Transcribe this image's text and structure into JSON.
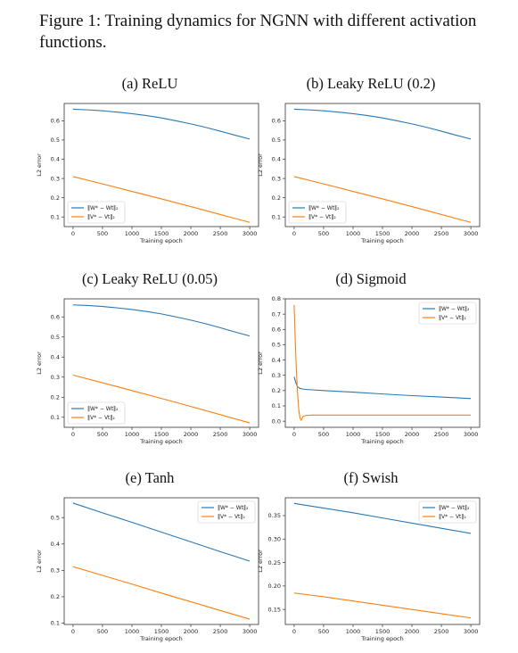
{
  "figure": {
    "caption": "Figure 1: Training dynamics for NGNN with different activation functions.",
    "colors": {
      "W_series": "#2878b5",
      "V_series": "#ff7f0e",
      "frame": "#333333"
    }
  },
  "chart_data": [
    {
      "id": "relu",
      "type": "line",
      "title": "(a) ReLU",
      "xlabel": "Training epoch",
      "ylabel": "L2 error",
      "xlim": [
        -150,
        3150
      ],
      "ylim": [
        0.05,
        0.69
      ],
      "xticks": [
        0,
        500,
        1000,
        1500,
        2000,
        2500,
        3000
      ],
      "xtick_labels": [
        "0",
        "500",
        "1000",
        "1500",
        "2000",
        "2500",
        "3000"
      ],
      "yticks": [
        0.1,
        0.2,
        0.3,
        0.4,
        0.5,
        0.6
      ],
      "ytick_labels": [
        "0.1",
        "0.2",
        "0.3",
        "0.4",
        "0.5",
        "0.6"
      ],
      "legend": "bottom-left",
      "grid": false,
      "series": [
        {
          "name": "‖W* − Wt‖₂",
          "color": "#2878b5",
          "x": [
            0,
            250,
            500,
            750,
            1000,
            1250,
            1500,
            1750,
            2000,
            2250,
            2500,
            2750,
            3000
          ],
          "y": [
            0.66,
            0.657,
            0.652,
            0.645,
            0.637,
            0.627,
            0.615,
            0.6,
            0.584,
            0.566,
            0.546,
            0.525,
            0.505
          ]
        },
        {
          "name": "‖V* − Vt‖₂",
          "color": "#ff7f0e",
          "x": [
            0,
            500,
            1000,
            1500,
            2000,
            2500,
            3000
          ],
          "y": [
            0.31,
            0.272,
            0.233,
            0.194,
            0.154,
            0.113,
            0.072
          ]
        }
      ]
    },
    {
      "id": "leaky02",
      "type": "line",
      "title": "(b) Leaky ReLU (0.2)",
      "xlabel": "Training epoch",
      "ylabel": "L2 error",
      "xlim": [
        -150,
        3150
      ],
      "ylim": [
        0.05,
        0.69
      ],
      "xticks": [
        0,
        500,
        1000,
        1500,
        2000,
        2500,
        3000
      ],
      "xtick_labels": [
        "0",
        "500",
        "1000",
        "1500",
        "2000",
        "2500",
        "3000"
      ],
      "yticks": [
        0.1,
        0.2,
        0.3,
        0.4,
        0.5,
        0.6
      ],
      "ytick_labels": [
        "0.1",
        "0.2",
        "0.3",
        "0.4",
        "0.5",
        "0.6"
      ],
      "legend": "bottom-left",
      "grid": false,
      "series": [
        {
          "name": "‖W* − Wt‖₂",
          "color": "#2878b5",
          "x": [
            0,
            250,
            500,
            750,
            1000,
            1250,
            1500,
            1750,
            2000,
            2250,
            2500,
            2750,
            3000
          ],
          "y": [
            0.66,
            0.657,
            0.652,
            0.645,
            0.637,
            0.627,
            0.615,
            0.6,
            0.584,
            0.566,
            0.546,
            0.525,
            0.505
          ]
        },
        {
          "name": "‖V* − Vt‖₂",
          "color": "#ff7f0e",
          "x": [
            0,
            500,
            1000,
            1500,
            2000,
            2500,
            3000
          ],
          "y": [
            0.31,
            0.272,
            0.233,
            0.194,
            0.154,
            0.113,
            0.072
          ]
        }
      ]
    },
    {
      "id": "leaky005",
      "type": "line",
      "title": "(c) Leaky ReLU (0.05)",
      "xlabel": "Training epoch",
      "ylabel": "L2 error",
      "xlim": [
        -150,
        3150
      ],
      "ylim": [
        0.05,
        0.69
      ],
      "xticks": [
        0,
        500,
        1000,
        1500,
        2000,
        2500,
        3000
      ],
      "xtick_labels": [
        "0",
        "500",
        "1000",
        "1500",
        "2000",
        "2500",
        "3000"
      ],
      "yticks": [
        0.1,
        0.2,
        0.3,
        0.4,
        0.5,
        0.6
      ],
      "ytick_labels": [
        "0.1",
        "0.2",
        "0.3",
        "0.4",
        "0.5",
        "0.6"
      ],
      "legend": "bottom-left",
      "grid": false,
      "series": [
        {
          "name": "‖W* − Wt‖₂",
          "color": "#2878b5",
          "x": [
            0,
            250,
            500,
            750,
            1000,
            1250,
            1500,
            1750,
            2000,
            2250,
            2500,
            2750,
            3000
          ],
          "y": [
            0.66,
            0.657,
            0.652,
            0.645,
            0.637,
            0.627,
            0.615,
            0.6,
            0.584,
            0.566,
            0.546,
            0.525,
            0.505
          ]
        },
        {
          "name": "‖V* − Vt‖₂",
          "color": "#ff7f0e",
          "x": [
            0,
            500,
            1000,
            1500,
            2000,
            2500,
            3000
          ],
          "y": [
            0.31,
            0.272,
            0.233,
            0.194,
            0.154,
            0.113,
            0.072
          ]
        }
      ]
    },
    {
      "id": "sigmoid",
      "type": "line",
      "title": "(d) Sigmoid",
      "xlabel": "Training epoch",
      "ylabel": "L2 error",
      "xlim": [
        -150,
        3150
      ],
      "ylim": [
        -0.04,
        0.8
      ],
      "xticks": [
        0,
        500,
        1000,
        1500,
        2000,
        2500,
        3000
      ],
      "xtick_labels": [
        "0",
        "500",
        "1000",
        "1500",
        "2000",
        "2500",
        "3000"
      ],
      "yticks": [
        0.0,
        0.1,
        0.2,
        0.3,
        0.4,
        0.5,
        0.6,
        0.7,
        0.8
      ],
      "ytick_labels": [
        "0.0",
        "0.1",
        "0.2",
        "0.3",
        "0.4",
        "0.5",
        "0.6",
        "0.7",
        "0.8"
      ],
      "legend": "top-right",
      "grid": false,
      "series": [
        {
          "name": "‖W* − Wt‖₂",
          "color": "#2878b5",
          "x": [
            0,
            30,
            60,
            100,
            150,
            200,
            300,
            500,
            1000,
            1500,
            2000,
            2500,
            3000
          ],
          "y": [
            0.29,
            0.25,
            0.225,
            0.214,
            0.21,
            0.208,
            0.205,
            0.2,
            0.19,
            0.178,
            0.167,
            0.158,
            0.148
          ]
        },
        {
          "name": "‖V* − Vt‖₂",
          "color": "#ff7f0e",
          "x": [
            0,
            20,
            40,
            60,
            80,
            100,
            120,
            150,
            200,
            300,
            500,
            1000,
            2000,
            3000
          ],
          "y": [
            0.76,
            0.52,
            0.32,
            0.17,
            0.07,
            0.02,
            0.005,
            0.03,
            0.038,
            0.04,
            0.04,
            0.04,
            0.04,
            0.04
          ]
        }
      ]
    },
    {
      "id": "tanh",
      "type": "line",
      "title": "(e) Tanh",
      "xlabel": "Training epoch",
      "ylabel": "L2 error",
      "xlim": [
        -150,
        3150
      ],
      "ylim": [
        0.095,
        0.575
      ],
      "xticks": [
        0,
        500,
        1000,
        1500,
        2000,
        2500,
        3000
      ],
      "xtick_labels": [
        "0",
        "500",
        "1000",
        "1500",
        "2000",
        "2500",
        "3000"
      ],
      "yticks": [
        0.1,
        0.2,
        0.3,
        0.4,
        0.5
      ],
      "ytick_labels": [
        "0.1",
        "0.2",
        "0.3",
        "0.4",
        "0.5"
      ],
      "legend": "top-right",
      "grid": false,
      "series": [
        {
          "name": "‖W* − Wt‖₂",
          "color": "#2878b5",
          "x": [
            0,
            500,
            1000,
            1500,
            2000,
            2500,
            3000
          ],
          "y": [
            0.555,
            0.518,
            0.482,
            0.445,
            0.408,
            0.371,
            0.335
          ]
        },
        {
          "name": "‖V* − Vt‖₂",
          "color": "#ff7f0e",
          "x": [
            0,
            500,
            1000,
            1500,
            2000,
            2500,
            3000
          ],
          "y": [
            0.314,
            0.281,
            0.248,
            0.214,
            0.181,
            0.148,
            0.115
          ]
        }
      ]
    },
    {
      "id": "swish",
      "type": "line",
      "title": "(f) Swish",
      "xlabel": "Training epoch",
      "ylabel": "L2 error",
      "xlim": [
        -150,
        3150
      ],
      "ylim": [
        0.118,
        0.388
      ],
      "xticks": [
        0,
        500,
        1000,
        1500,
        2000,
        2500,
        3000
      ],
      "xtick_labels": [
        "0",
        "500",
        "1000",
        "1500",
        "2000",
        "2500",
        "3000"
      ],
      "yticks": [
        0.15,
        0.2,
        0.25,
        0.3,
        0.35
      ],
      "ytick_labels": [
        "0.15",
        "0.20",
        "0.25",
        "0.30",
        "0.35"
      ],
      "legend": "top-right",
      "grid": false,
      "series": [
        {
          "name": "‖W* − Wt‖₂",
          "color": "#2878b5",
          "x": [
            0,
            500,
            1000,
            1500,
            2000,
            2500,
            3000
          ],
          "y": [
            0.376,
            0.366,
            0.356,
            0.345,
            0.334,
            0.323,
            0.312
          ]
        },
        {
          "name": "‖V* − Vt‖₂",
          "color": "#ff7f0e",
          "x": [
            0,
            500,
            1000,
            1500,
            2000,
            2500,
            3000
          ],
          "y": [
            0.185,
            0.177,
            0.168,
            0.159,
            0.15,
            0.141,
            0.132
          ]
        }
      ]
    }
  ]
}
